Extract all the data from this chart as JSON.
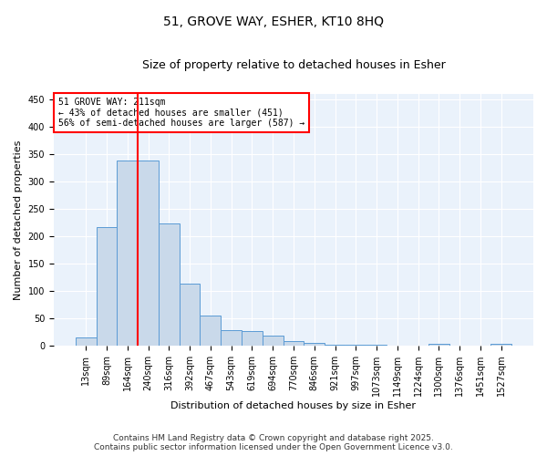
{
  "title_line1": "51, GROVE WAY, ESHER, KT10 8HQ",
  "title_line2": "Size of property relative to detached houses in Esher",
  "xlabel": "Distribution of detached houses by size in Esher",
  "ylabel": "Number of detached properties",
  "categories": [
    "13sqm",
    "89sqm",
    "164sqm",
    "240sqm",
    "316sqm",
    "392sqm",
    "467sqm",
    "543sqm",
    "619sqm",
    "694sqm",
    "770sqm",
    "846sqm",
    "921sqm",
    "997sqm",
    "1073sqm",
    "1149sqm",
    "1224sqm",
    "1300sqm",
    "1376sqm",
    "1451sqm",
    "1527sqm"
  ],
  "values": [
    15,
    217,
    338,
    338,
    223,
    113,
    55,
    28,
    27,
    19,
    8,
    5,
    1,
    1,
    1,
    0,
    0,
    3,
    0,
    0,
    3
  ],
  "bar_color": "#c9d9ea",
  "bar_edge_color": "#5b9bd5",
  "vline_x": 2.5,
  "vline_color": "red",
  "annotation_text": "51 GROVE WAY: 211sqm\n← 43% of detached houses are smaller (451)\n56% of semi-detached houses are larger (587) →",
  "annotation_box_color": "white",
  "annotation_box_edge_color": "red",
  "ylim": [
    0,
    460
  ],
  "yticks": [
    0,
    50,
    100,
    150,
    200,
    250,
    300,
    350,
    400,
    450
  ],
  "bg_color": "#eaf2fb",
  "footer_line1": "Contains HM Land Registry data © Crown copyright and database right 2025.",
  "footer_line2": "Contains public sector information licensed under the Open Government Licence v3.0.",
  "title_fontsize": 10,
  "subtitle_fontsize": 9,
  "tick_fontsize": 7,
  "ylabel_fontsize": 8,
  "xlabel_fontsize": 8,
  "annotation_fontsize": 7,
  "footer_fontsize": 6.5
}
